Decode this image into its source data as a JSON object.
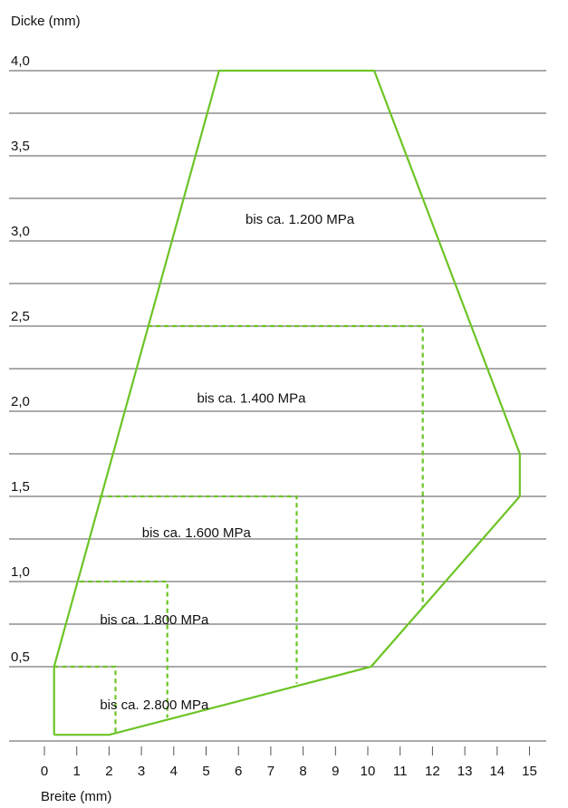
{
  "chart_data": {
    "type": "area",
    "ylabel": "Dicke (mm)",
    "xlabel": "Breite (mm)",
    "xlim": [
      0,
      15
    ],
    "ylim": [
      0,
      4.0
    ],
    "x_ticks": [
      0,
      1,
      2,
      3,
      4,
      5,
      6,
      7,
      8,
      9,
      10,
      11,
      12,
      13,
      14,
      15
    ],
    "x_tick_labels": [
      "0",
      "1",
      "2",
      "3",
      "4",
      "5",
      "6",
      "7",
      "8",
      "9",
      "10",
      "11",
      "12",
      "13",
      "14",
      "15"
    ],
    "y_tick_labels": [
      {
        "value": 0.5,
        "label": "0,5"
      },
      {
        "value": 1.0,
        "label": "1,0"
      },
      {
        "value": 1.5,
        "label": "1,5"
      },
      {
        "value": 2.0,
        "label": "2,0"
      },
      {
        "value": 2.5,
        "label": "2,5"
      },
      {
        "value": 3.0,
        "label": "3,0"
      },
      {
        "value": 3.5,
        "label": "3,5"
      },
      {
        "value": 4.0,
        "label": "4,0"
      }
    ],
    "gridlines": [
      0.5,
      0.75,
      1.0,
      1.25,
      1.5,
      1.75,
      2.0,
      2.25,
      2.5,
      2.75,
      3.0,
      3.25,
      3.5,
      3.75,
      4.0
    ],
    "grid": true,
    "line_color": "#6cc425",
    "grid_color": "#555555",
    "series": [
      {
        "name": "bis ca. 1.200 MPa",
        "style": "solid",
        "points": [
          [
            0.3,
            0.1
          ],
          [
            0.3,
            0.5
          ],
          [
            5.4,
            4.0
          ],
          [
            10.2,
            4.0
          ],
          [
            14.7,
            1.75
          ],
          [
            14.7,
            1.5
          ],
          [
            10.1,
            0.5
          ],
          [
            2.0,
            0.1
          ],
          [
            0.3,
            0.1
          ]
        ]
      },
      {
        "name": "bis ca. 1.400 MPa",
        "style": "dashed",
        "points": [
          [
            3.2,
            2.5
          ],
          [
            11.7,
            2.5
          ],
          [
            11.7,
            0.85
          ]
        ]
      },
      {
        "name": "bis ca. 1.600 MPa",
        "style": "dashed",
        "points": [
          [
            1.7,
            1.5
          ],
          [
            7.8,
            1.5
          ],
          [
            7.8,
            0.4
          ]
        ]
      },
      {
        "name": "bis ca. 1.800 MPa",
        "style": "dashed",
        "points": [
          [
            1.1,
            1.0
          ],
          [
            3.8,
            1.0
          ],
          [
            3.8,
            0.2
          ]
        ]
      },
      {
        "name": "bis ca. 2.800 MPa",
        "style": "dashed",
        "points": [
          [
            0.3,
            0.5
          ],
          [
            2.2,
            0.5
          ],
          [
            2.2,
            0.1
          ]
        ]
      }
    ],
    "annotations": [
      {
        "text": "bis ca. 1.200 MPa",
        "x": 7.9,
        "y": 3.1
      },
      {
        "text": "bis ca. 1.400 MPa",
        "x": 6.4,
        "y": 2.05
      },
      {
        "text": "bis ca. 1.600 MPa",
        "x": 4.7,
        "y": 1.26
      },
      {
        "text": "bis ca. 1.800 MPa",
        "x": 3.4,
        "y": 0.75
      },
      {
        "text": "bis ca. 2.800 MPa",
        "x": 3.4,
        "y": 0.25
      }
    ]
  }
}
